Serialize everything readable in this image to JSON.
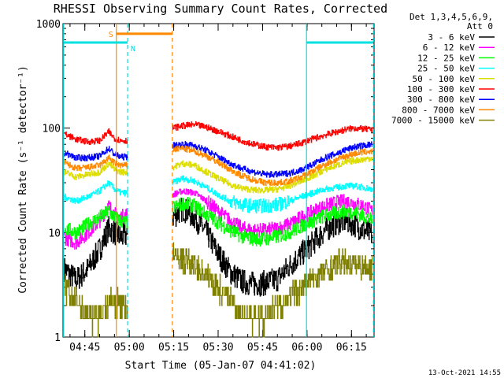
{
  "chart_data": {
    "type": "line",
    "title": "RHESSI Observing Summary Count Rates, Corrected",
    "xlabel": "Start Time (05-Jan-07 04:41:02)",
    "ylabel": "Corrected Count Rate (s⁻¹ detector⁻¹)",
    "ylog": true,
    "xlim": [
      -3.4,
      101.6
    ],
    "ylim": [
      1,
      1000
    ],
    "x_unit": "minutes after 04:41:02",
    "x_ticks": [
      {
        "x": 3.97,
        "label": "04:45"
      },
      {
        "x": 18.97,
        "label": "05:00"
      },
      {
        "x": 33.97,
        "label": "05:15"
      },
      {
        "x": 48.97,
        "label": "05:30"
      },
      {
        "x": 63.97,
        "label": "05:45"
      },
      {
        "x": 78.97,
        "label": "06:00"
      },
      {
        "x": 93.97,
        "label": "06:15"
      }
    ],
    "y_ticks": [
      {
        "y": 1,
        "label": "1"
      },
      {
        "y": 10,
        "label": "10"
      },
      {
        "y": 100,
        "label": "100"
      },
      {
        "y": 1000,
        "label": "1000"
      }
    ],
    "legend_header": [
      "Det 1,3,4,5,6,9,",
      "Att 0"
    ],
    "legend_placement": "top-right",
    "series": [
      {
        "name": "3 - 6 keV",
        "color": "#000000",
        "points": [
          [
            -3,
            4.5
          ],
          [
            1,
            3.5
          ],
          [
            5,
            4.5
          ],
          [
            9,
            7
          ],
          [
            12,
            11
          ],
          [
            14,
            10
          ],
          [
            16,
            9
          ],
          [
            18,
            9.5
          ],
          [
            33.5,
            14
          ],
          [
            37,
            17
          ],
          [
            41,
            14
          ],
          [
            45,
            10
          ],
          [
            49,
            6.2
          ],
          [
            53,
            4.2
          ],
          [
            57,
            3.4
          ],
          [
            61,
            3.2
          ],
          [
            65,
            3.3
          ],
          [
            69,
            3.6
          ],
          [
            73,
            4.8
          ],
          [
            77,
            6.2
          ],
          [
            81,
            8
          ],
          [
            85,
            10.5
          ],
          [
            89,
            12.5
          ],
          [
            92,
            13
          ],
          [
            95,
            12
          ],
          [
            98,
            10.5
          ],
          [
            101,
            9.5
          ]
        ]
      },
      {
        "name": "6 - 12 keV",
        "color": "#ff00ff",
        "points": [
          [
            -3,
            9
          ],
          [
            1,
            8
          ],
          [
            5,
            10
          ],
          [
            9,
            13
          ],
          [
            12,
            18
          ],
          [
            14,
            15
          ],
          [
            16,
            14
          ],
          [
            18,
            15
          ],
          [
            33.5,
            23
          ],
          [
            37,
            25
          ],
          [
            41,
            24
          ],
          [
            45,
            20
          ],
          [
            49,
            16
          ],
          [
            53,
            13
          ],
          [
            57,
            11
          ],
          [
            61,
            10.5
          ],
          [
            65,
            10.5
          ],
          [
            69,
            11
          ],
          [
            73,
            12
          ],
          [
            77,
            14
          ],
          [
            81,
            16
          ],
          [
            85,
            18
          ],
          [
            89,
            19.5
          ],
          [
            92,
            20
          ],
          [
            95,
            19
          ],
          [
            98,
            18
          ],
          [
            101,
            16
          ]
        ]
      },
      {
        "name": "12 - 25 keV",
        "color": "#00ff00",
        "points": [
          [
            -3,
            11
          ],
          [
            1,
            10
          ],
          [
            5,
            12
          ],
          [
            9,
            14
          ],
          [
            12,
            16
          ],
          [
            14,
            14
          ],
          [
            16,
            13
          ],
          [
            18,
            12.5
          ],
          [
            33.5,
            17
          ],
          [
            37,
            19
          ],
          [
            41,
            18
          ],
          [
            45,
            15
          ],
          [
            49,
            12.5
          ],
          [
            53,
            10.5
          ],
          [
            57,
            9.2
          ],
          [
            61,
            8.7
          ],
          [
            65,
            8.7
          ],
          [
            69,
            9.2
          ],
          [
            73,
            10
          ],
          [
            77,
            11.5
          ],
          [
            81,
            13
          ],
          [
            85,
            14.5
          ],
          [
            89,
            15.5
          ],
          [
            92,
            16
          ],
          [
            95,
            15.5
          ],
          [
            98,
            14.5
          ],
          [
            101,
            13
          ]
        ]
      },
      {
        "name": "25 - 50 keV",
        "color": "#00ffff",
        "points": [
          [
            -3,
            22
          ],
          [
            1,
            20
          ],
          [
            5,
            22
          ],
          [
            9,
            25
          ],
          [
            12,
            30
          ],
          [
            14,
            26
          ],
          [
            16,
            24
          ],
          [
            18,
            24
          ],
          [
            33.5,
            30
          ],
          [
            37,
            33
          ],
          [
            41,
            31
          ],
          [
            45,
            27
          ],
          [
            49,
            23
          ],
          [
            53,
            20
          ],
          [
            57,
            18.5
          ],
          [
            61,
            18
          ],
          [
            65,
            18
          ],
          [
            69,
            18.5
          ],
          [
            73,
            20
          ],
          [
            77,
            22
          ],
          [
            81,
            24
          ],
          [
            85,
            26
          ],
          [
            89,
            27
          ],
          [
            92,
            28
          ],
          [
            95,
            28
          ],
          [
            98,
            27
          ],
          [
            101,
            26
          ]
        ]
      },
      {
        "name": "50 - 100 keV",
        "color": "#dddd00",
        "points": [
          [
            -3,
            38
          ],
          [
            1,
            34
          ],
          [
            5,
            36
          ],
          [
            9,
            38
          ],
          [
            12,
            46
          ],
          [
            14,
            40
          ],
          [
            16,
            38
          ],
          [
            18,
            38
          ],
          [
            33.5,
            42
          ],
          [
            37,
            46
          ],
          [
            41,
            44
          ],
          [
            45,
            38
          ],
          [
            49,
            33
          ],
          [
            53,
            29
          ],
          [
            57,
            26.5
          ],
          [
            61,
            25.5
          ],
          [
            65,
            25.5
          ],
          [
            69,
            26
          ],
          [
            73,
            28
          ],
          [
            77,
            31
          ],
          [
            81,
            35
          ],
          [
            85,
            40
          ],
          [
            89,
            44
          ],
          [
            92,
            47
          ],
          [
            95,
            49
          ],
          [
            98,
            50
          ],
          [
            101,
            52
          ]
        ]
      },
      {
        "name": "100 - 300 keV",
        "color": "#ff0000",
        "points": [
          [
            -3,
            88
          ],
          [
            1,
            78
          ],
          [
            5,
            74
          ],
          [
            9,
            76
          ],
          [
            12,
            92
          ],
          [
            14,
            80
          ],
          [
            16,
            76
          ],
          [
            18,
            76
          ],
          [
            33.5,
            100
          ],
          [
            37,
            105
          ],
          [
            41,
            108
          ],
          [
            45,
            102
          ],
          [
            49,
            93
          ],
          [
            53,
            84
          ],
          [
            57,
            76
          ],
          [
            61,
            70
          ],
          [
            65,
            66
          ],
          [
            69,
            65
          ],
          [
            73,
            67
          ],
          [
            77,
            72
          ],
          [
            81,
            79
          ],
          [
            85,
            86
          ],
          [
            89,
            92
          ],
          [
            92,
            97
          ],
          [
            95,
            100
          ],
          [
            98,
            98
          ],
          [
            101,
            96
          ]
        ]
      },
      {
        "name": "300 - 800 keV",
        "color": "#0000ff",
        "points": [
          [
            -3,
            58
          ],
          [
            1,
            52
          ],
          [
            5,
            52
          ],
          [
            9,
            54
          ],
          [
            12,
            64
          ],
          [
            14,
            56
          ],
          [
            16,
            53
          ],
          [
            18,
            53
          ],
          [
            33.5,
            68
          ],
          [
            37,
            70
          ],
          [
            41,
            68
          ],
          [
            45,
            61
          ],
          [
            49,
            53
          ],
          [
            53,
            46
          ],
          [
            57,
            41
          ],
          [
            61,
            38
          ],
          [
            65,
            36
          ],
          [
            69,
            36
          ],
          [
            73,
            37
          ],
          [
            77,
            40
          ],
          [
            81,
            45
          ],
          [
            85,
            52
          ],
          [
            89,
            57
          ],
          [
            92,
            62
          ],
          [
            95,
            66
          ],
          [
            98,
            68
          ],
          [
            101,
            70
          ]
        ]
      },
      {
        "name": "800 - 7000 keV",
        "color": "#ff8800",
        "points": [
          [
            -3,
            47
          ],
          [
            1,
            41
          ],
          [
            5,
            42
          ],
          [
            9,
            44
          ],
          [
            12,
            52
          ],
          [
            14,
            46
          ],
          [
            16,
            44
          ],
          [
            18,
            44
          ],
          [
            33.5,
            62
          ],
          [
            37,
            64
          ],
          [
            41,
            60
          ],
          [
            45,
            54
          ],
          [
            49,
            47
          ],
          [
            53,
            40
          ],
          [
            57,
            35
          ],
          [
            61,
            32
          ],
          [
            65,
            30
          ],
          [
            69,
            30
          ],
          [
            73,
            31
          ],
          [
            77,
            34
          ],
          [
            81,
            39
          ],
          [
            85,
            45
          ],
          [
            89,
            50
          ],
          [
            92,
            54
          ],
          [
            95,
            57
          ],
          [
            98,
            59
          ],
          [
            101,
            60
          ]
        ]
      },
      {
        "name": "7000 - 15000 keV",
        "color": "#808000",
        "points": [
          [
            -3,
            3
          ],
          [
            1,
            2.2
          ],
          [
            5,
            1.6
          ],
          [
            9,
            1.6
          ],
          [
            12,
            2.2
          ],
          [
            14,
            2.2
          ],
          [
            16,
            2.1
          ],
          [
            18,
            2
          ],
          [
            33.5,
            6
          ],
          [
            37,
            5.5
          ],
          [
            41,
            4.8
          ],
          [
            45,
            3.9
          ],
          [
            49,
            3
          ],
          [
            53,
            2.2
          ],
          [
            57,
            1.7
          ],
          [
            61,
            1.5
          ],
          [
            65,
            1.6
          ],
          [
            69,
            1.9
          ],
          [
            73,
            2.4
          ],
          [
            77,
            3
          ],
          [
            81,
            3.6
          ],
          [
            85,
            4.3
          ],
          [
            89,
            5
          ],
          [
            92,
            5.2
          ],
          [
            95,
            5
          ],
          [
            98,
            4.8
          ],
          [
            101,
            4.5
          ]
        ]
      }
    ],
    "annotations": {
      "saa_label": "S",
      "night_label": "N",
      "saa_bar": {
        "x": [
          14.6,
          33.5
        ],
        "y": 800,
        "color": "#ff8800"
      },
      "night_bars": [
        {
          "x": [
            -3.2,
            18.4
          ],
          "y": 660,
          "color": "#00e0e0"
        },
        {
          "x": [
            78.8,
            101.4
          ],
          "y": 660,
          "color": "#00e0e0"
        }
      ],
      "vlines": [
        {
          "x": 14.6,
          "color": "#ff8800",
          "style": "solid"
        },
        {
          "x": 33.5,
          "color": "#ff8800",
          "style": "dashed"
        },
        {
          "x": -3.2,
          "color": "#00e0e0",
          "style": "solid"
        },
        {
          "x": 18.4,
          "color": "#00e0e0",
          "style": "dashed"
        },
        {
          "x": 78.8,
          "color": "#00e0e0",
          "style": "solid"
        },
        {
          "x": 101.4,
          "color": "#00e0e0",
          "style": "dashed"
        }
      ]
    }
  },
  "footer": {
    "timestamp": "13-Oct-2021 14:55"
  }
}
